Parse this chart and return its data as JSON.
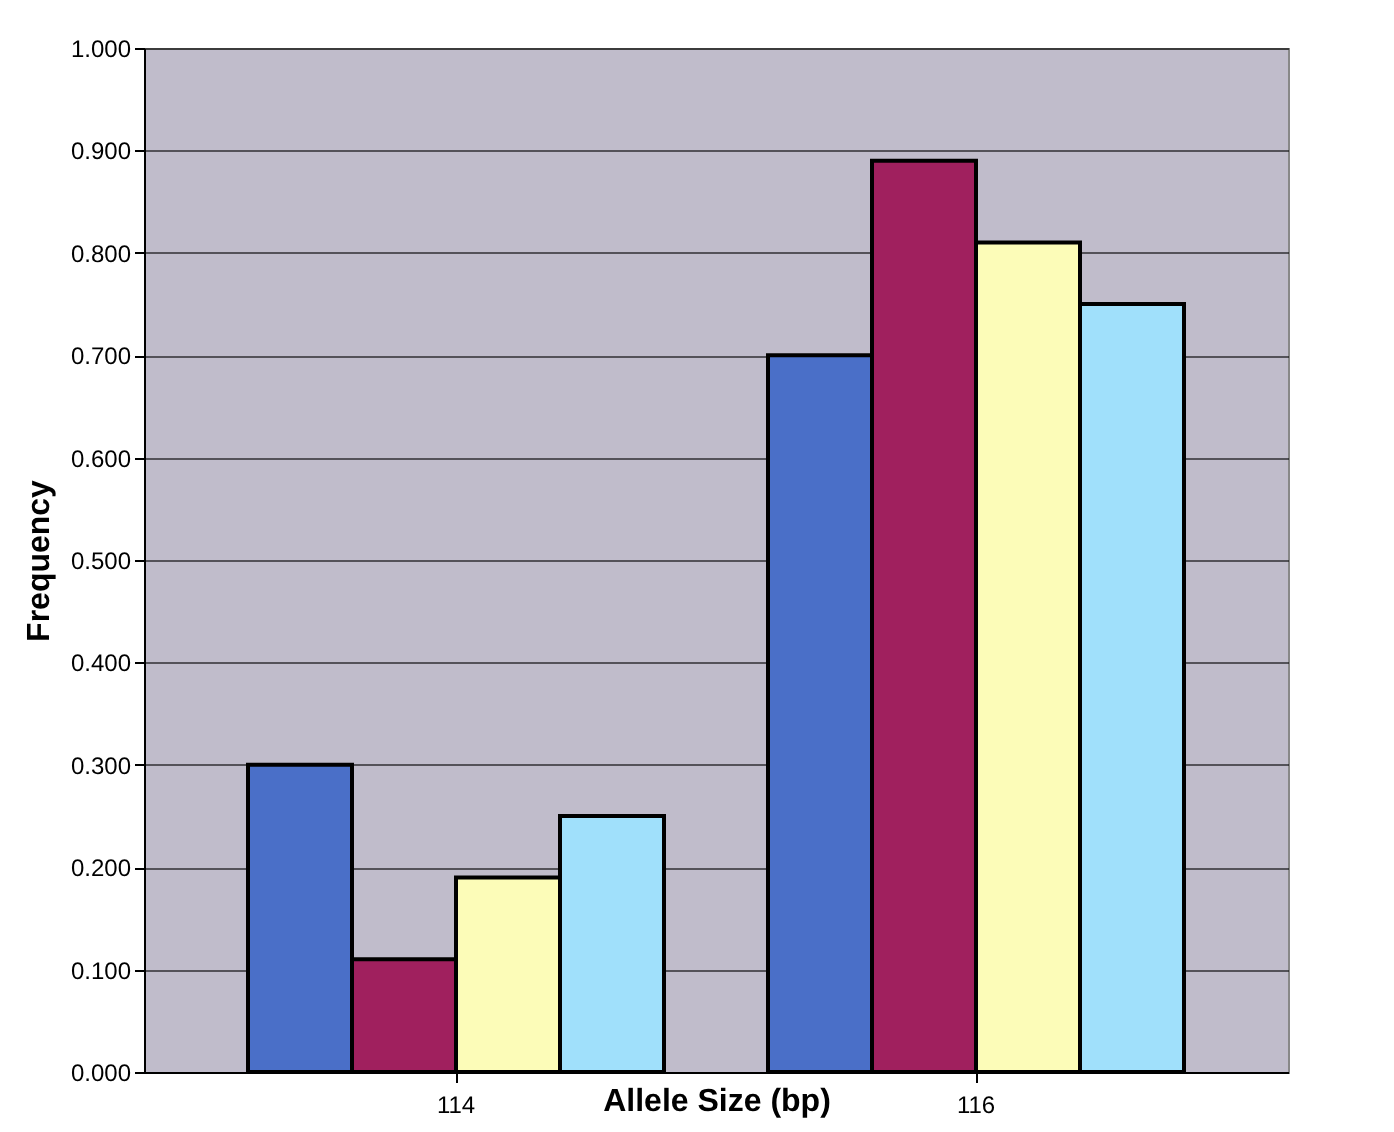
{
  "chart_data": {
    "type": "bar",
    "xlabel": "Allele Size (bp)",
    "ylabel": "Frequency",
    "categories": [
      "114",
      "116"
    ],
    "series": [
      {
        "color": "#4a6fc8",
        "values": [
          0.3,
          0.7
        ]
      },
      {
        "color": "#a0205e",
        "values": [
          0.11,
          0.89
        ]
      },
      {
        "color": "#fcfcb8",
        "values": [
          0.19,
          0.81
        ]
      },
      {
        "color": "#a0e0fb",
        "values": [
          0.25,
          0.75
        ]
      }
    ],
    "ylim": [
      0,
      1
    ],
    "yticks": [
      {
        "value": 0,
        "label": "0.000"
      },
      {
        "value": 0.1,
        "label": "0.100"
      },
      {
        "value": 0.2,
        "label": "0.200"
      },
      {
        "value": 0.3,
        "label": "0.300"
      },
      {
        "value": 0.4,
        "label": "0.400"
      },
      {
        "value": 0.5,
        "label": "0.500"
      },
      {
        "value": 0.6,
        "label": "0.600"
      },
      {
        "value": 0.7,
        "label": "0.700"
      },
      {
        "value": 0.8,
        "label": "0.800"
      },
      {
        "value": 0.9,
        "label": "0.900"
      },
      {
        "value": 1,
        "label": "1.000"
      }
    ],
    "grid": "y",
    "legend": false
  }
}
